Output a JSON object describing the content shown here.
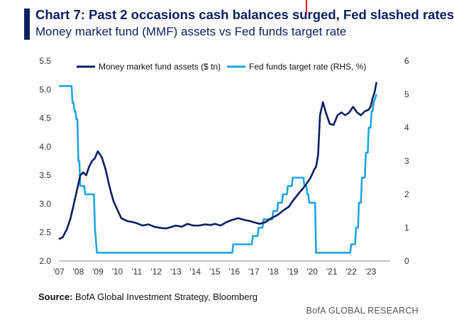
{
  "header": {
    "title": "Chart 7: Past 2 occasions cash balances surged, Fed slashed rates",
    "subtitle": "Money market fund (MMF) assets vs Fed funds target rate"
  },
  "footer": {
    "source_label": "Source:",
    "source_text": "BofA Global Investment Strategy, Bloomberg",
    "brand": "BofA GLOBAL RESEARCH"
  },
  "colors": {
    "accent": "#0a1f63",
    "mmf_series": "#0a1f63",
    "fed_series": "#1fa5e0",
    "cursor_mark": "#e0201b"
  },
  "chart_data": {
    "type": "line",
    "title": "Chart 7: Past 2 occasions cash balances surged, Fed slashed rates",
    "subtitle": "Money market fund (MMF) assets vs Fed funds target rate",
    "x_ticks": [
      "'07",
      "'08",
      "'09",
      "'10",
      "'11",
      "'12",
      "'13",
      "'14",
      "'15",
      "'16",
      "'17",
      "'18",
      "'19",
      "'20",
      "'21",
      "'22",
      "'23"
    ],
    "xlim": [
      2007,
      2024
    ],
    "left_axis": {
      "ylim": [
        2.0,
        5.5
      ],
      "ticks": [
        "2.0",
        "2.5",
        "3.0",
        "3.5",
        "4.0",
        "4.5",
        "5.0",
        "5.5"
      ]
    },
    "right_axis": {
      "ylim": [
        0,
        6
      ],
      "ticks": [
        "0",
        "1",
        "2",
        "3",
        "4",
        "5",
        "6"
      ]
    },
    "legend_position": "top",
    "grid": false,
    "series": [
      {
        "name": "Money market fund assets ($ tn)",
        "axis": "left",
        "x": [
          2007.0,
          2007.2,
          2007.4,
          2007.6,
          2007.8,
          2008.0,
          2008.1,
          2008.25,
          2008.4,
          2008.55,
          2008.7,
          2008.85,
          2009.0,
          2009.2,
          2009.4,
          2009.6,
          2009.8,
          2010.0,
          2010.2,
          2010.5,
          2010.8,
          2011.0,
          2011.3,
          2011.6,
          2011.9,
          2012.2,
          2012.5,
          2012.8,
          2013.0,
          2013.3,
          2013.6,
          2013.9,
          2014.2,
          2014.5,
          2014.8,
          2015.0,
          2015.3,
          2015.6,
          2015.9,
          2016.2,
          2016.5,
          2016.8,
          2017.0,
          2017.3,
          2017.6,
          2017.9,
          2018.2,
          2018.5,
          2018.8,
          2019.0,
          2019.3,
          2019.6,
          2019.9,
          2020.0,
          2020.1,
          2020.2,
          2020.3,
          2020.4,
          2020.55,
          2020.7,
          2020.9,
          2021.1,
          2021.3,
          2021.5,
          2021.7,
          2021.9,
          2022.1,
          2022.3,
          2022.5,
          2022.7,
          2022.9,
          2023.0,
          2023.1,
          2023.2,
          2023.3
        ],
        "values": [
          2.38,
          2.42,
          2.55,
          2.75,
          3.05,
          3.35,
          3.5,
          3.55,
          3.5,
          3.65,
          3.75,
          3.8,
          3.92,
          3.82,
          3.6,
          3.3,
          3.05,
          2.9,
          2.75,
          2.7,
          2.68,
          2.66,
          2.62,
          2.64,
          2.6,
          2.58,
          2.57,
          2.6,
          2.62,
          2.6,
          2.65,
          2.62,
          2.62,
          2.64,
          2.63,
          2.65,
          2.62,
          2.68,
          2.72,
          2.75,
          2.72,
          2.7,
          2.68,
          2.65,
          2.68,
          2.75,
          2.8,
          2.88,
          2.95,
          3.05,
          3.18,
          3.3,
          3.45,
          3.52,
          3.6,
          3.65,
          3.85,
          4.55,
          4.78,
          4.6,
          4.4,
          4.38,
          4.55,
          4.6,
          4.55,
          4.6,
          4.7,
          4.6,
          4.55,
          4.62,
          4.65,
          4.7,
          4.85,
          4.95,
          5.13
        ]
      },
      {
        "name": "Fed funds target rate (RHS, %)",
        "axis": "right",
        "x": [
          2007.0,
          2007.65,
          2007.7,
          2007.75,
          2007.8,
          2007.85,
          2007.9,
          2007.95,
          2008.0,
          2008.05,
          2008.1,
          2008.3,
          2008.35,
          2008.8,
          2008.85,
          2008.95,
          2015.9,
          2015.95,
          2016.9,
          2016.95,
          2017.2,
          2017.25,
          2017.45,
          2017.5,
          2017.95,
          2018.0,
          2018.2,
          2018.25,
          2018.45,
          2018.5,
          2018.7,
          2018.75,
          2018.95,
          2019.0,
          2019.55,
          2019.6,
          2019.7,
          2019.75,
          2019.8,
          2019.85,
          2020.15,
          2020.2,
          2021.95,
          2022.0,
          2022.2,
          2022.25,
          2022.35,
          2022.4,
          2022.5,
          2022.55,
          2022.7,
          2022.75,
          2022.85,
          2022.9,
          2023.0,
          2023.05,
          2023.1,
          2023.15,
          2023.3
        ],
        "values": [
          5.25,
          5.25,
          4.75,
          4.75,
          4.5,
          4.5,
          4.25,
          4.25,
          3.0,
          3.0,
          2.25,
          2.25,
          2.0,
          2.0,
          1.0,
          0.25,
          0.25,
          0.5,
          0.5,
          0.75,
          0.75,
          1.0,
          1.0,
          1.25,
          1.25,
          1.5,
          1.5,
          1.75,
          1.75,
          2.0,
          2.0,
          2.25,
          2.25,
          2.5,
          2.5,
          2.25,
          2.25,
          2.0,
          2.0,
          1.75,
          1.75,
          0.25,
          0.25,
          0.5,
          0.5,
          1.0,
          1.0,
          1.75,
          1.75,
          2.5,
          2.5,
          3.25,
          3.25,
          4.0,
          4.0,
          4.5,
          4.5,
          4.75,
          5.0
        ]
      }
    ]
  }
}
